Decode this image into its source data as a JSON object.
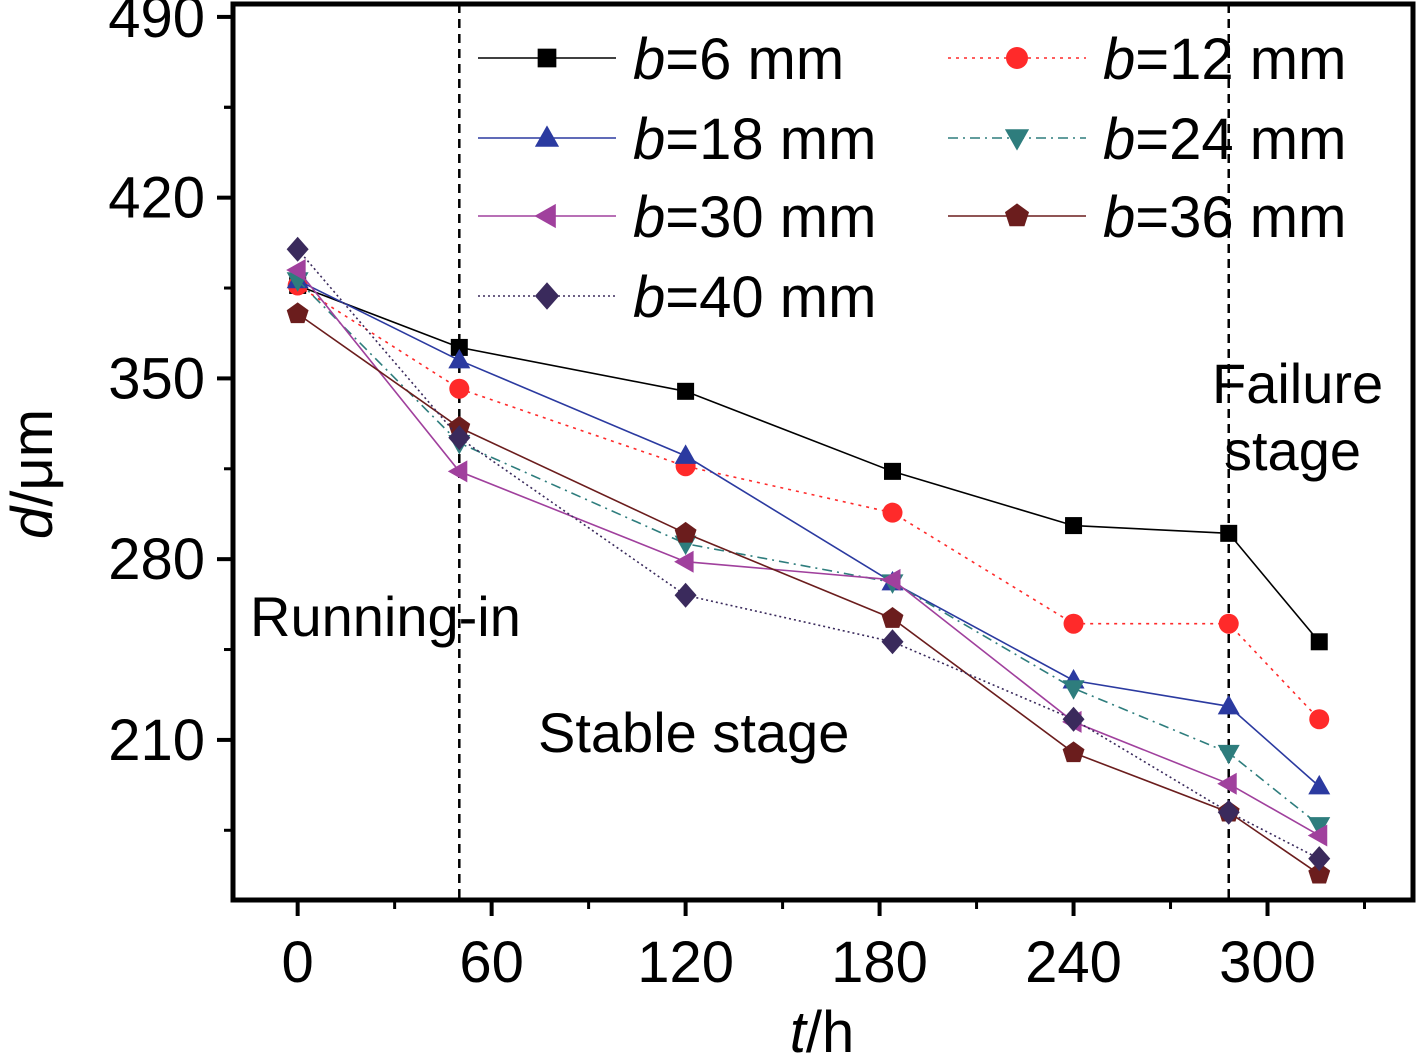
{
  "chart_data": {
    "type": "line",
    "xlabel": {
      "var": "t",
      "unit": "/h"
    },
    "ylabel": {
      "var": "d",
      "unit": "/μm"
    },
    "xlim": [
      -20,
      345
    ],
    "ylim": [
      148,
      495
    ],
    "xticks": [
      0,
      60,
      120,
      180,
      240,
      300
    ],
    "xtick_labels": [
      "0",
      "60",
      "120",
      "180",
      "240",
      "300"
    ],
    "yticks": [
      210,
      280,
      350,
      420,
      490
    ],
    "ytick_labels": [
      "210",
      "280",
      "350",
      "420",
      "490"
    ],
    "x": [
      0,
      50,
      120,
      184,
      240,
      288,
      316
    ],
    "series": [
      {
        "name": "b=6 mm",
        "legend_var": "b",
        "legend_rest": "=6 mm",
        "color": "#000000",
        "marker": "square",
        "dash": "",
        "values": [
          386,
          362,
          345,
          314,
          293,
          290,
          248
        ]
      },
      {
        "name": "b=12 mm",
        "legend_var": "b",
        "legend_rest": "=12 mm",
        "color": "#ff2a2a",
        "marker": "circle",
        "dash": "3,5",
        "values": [
          386,
          346,
          316,
          298,
          255,
          255,
          218
        ]
      },
      {
        "name": "b=18 mm",
        "legend_var": "b",
        "legend_rest": "=18 mm",
        "color": "#2b3aa0",
        "marker": "triangle-up",
        "dash": "",
        "values": [
          388,
          357,
          320,
          271,
          233,
          223,
          192
        ]
      },
      {
        "name": "b=24 mm",
        "legend_var": "b",
        "legend_rest": "=24 mm",
        "color": "#2e7d7d",
        "marker": "triangle-down",
        "dash": "10,5,2,5",
        "values": [
          388,
          325,
          286,
          271,
          230,
          205,
          177
        ]
      },
      {
        "name": "b=30 mm",
        "legend_var": "b",
        "legend_rest": "=30 mm",
        "color": "#a0409d",
        "marker": "triangle-left",
        "dash": "",
        "values": [
          392,
          314,
          279,
          272,
          217,
          193,
          173
        ]
      },
      {
        "name": "b=36 mm",
        "legend_var": "b",
        "legend_rest": "=36 mm",
        "color": "#6b1d1d",
        "marker": "pentagon",
        "dash": "",
        "values": [
          375,
          331,
          290,
          257,
          205,
          182,
          158
        ]
      },
      {
        "name": "b=40 mm",
        "legend_var": "b",
        "legend_rest": "=40 mm",
        "color": "#3a2a5c",
        "marker": "diamond",
        "dash": "2,3",
        "values": [
          400,
          327,
          266,
          248,
          218,
          182,
          164
        ]
      }
    ],
    "vlines": [
      50,
      288
    ],
    "annotations": [
      {
        "text": "Running-in"
      },
      {
        "text": "Stable stage"
      },
      {
        "text": "Failure"
      },
      {
        "text": "stage"
      }
    ],
    "legend_position": "top-right"
  }
}
